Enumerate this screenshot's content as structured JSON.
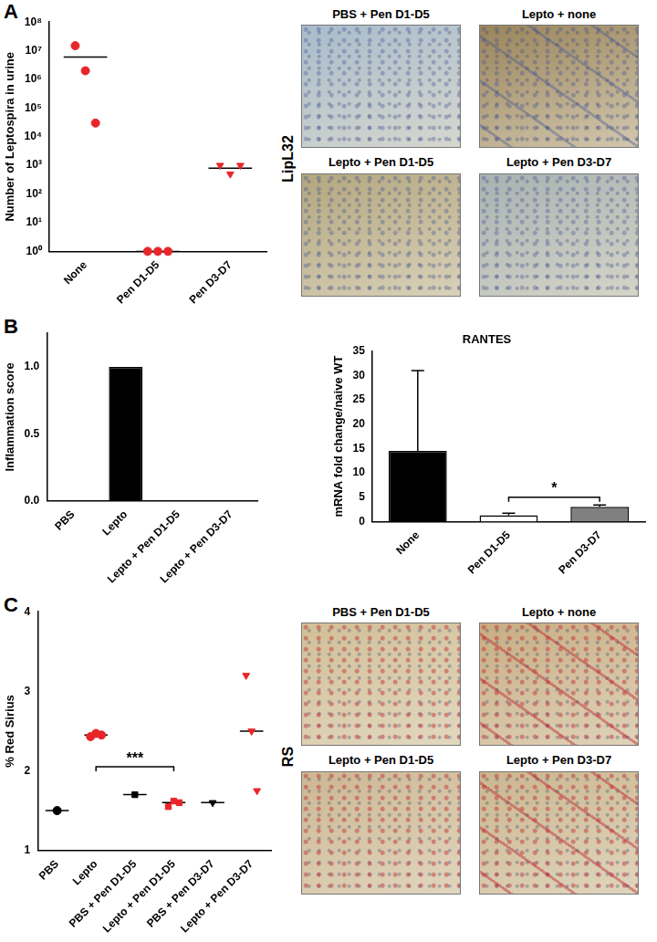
{
  "panel_labels": [
    "A",
    "B",
    "C"
  ],
  "chart_data": [
    {
      "type": "scatter",
      "ylabel": "Number of Leptospira in urine",
      "categories": [
        "None",
        "Pen D1-D5",
        "Pen D3-D7"
      ],
      "points": [
        [
          15000000,
          2000000,
          30000
        ],
        [
          1,
          1,
          1
        ],
        [
          1000,
          500,
          1000
        ]
      ],
      "center_values": [
        6000000,
        1,
        800
      ],
      "colors": [
        "#e8262a",
        "#e8262a",
        "#e8262a"
      ],
      "markers": [
        "circle",
        "circle",
        "triangle-down"
      ],
      "log": "y",
      "ylim": [
        1,
        100000000
      ],
      "yticks": [
        {
          "value": 1,
          "label": "10⁰"
        },
        {
          "value": 10,
          "label": "10¹"
        },
        {
          "value": 100,
          "label": "10²"
        },
        {
          "value": 1000,
          "label": "10³"
        },
        {
          "value": 10000,
          "label": "10⁴"
        },
        {
          "value": 100000,
          "label": "10⁵"
        },
        {
          "value": 1000000,
          "label": "10⁶"
        },
        {
          "value": 10000000,
          "label": "10⁷"
        },
        {
          "value": 100000000,
          "label": "10⁸"
        }
      ]
    },
    {
      "type": "bar",
      "ylabel": "Inflammation score",
      "categories": [
        "PBS",
        "Lepto",
        "Lepto + Pen D1-D5",
        "Lepto + Pen D3-D7"
      ],
      "values": [
        0,
        1,
        0,
        0
      ],
      "color": "#000000",
      "ylim": [
        0,
        1.25
      ],
      "yticks": [
        {
          "value": 0,
          "label": "0.0"
        },
        {
          "value": 0.5,
          "label": "0.5"
        },
        {
          "value": 1,
          "label": "1.0"
        }
      ]
    },
    {
      "type": "bar",
      "title": "RANTES",
      "ylabel": "mRNA fold change/naive WT",
      "categories": [
        "None",
        "Pen D1-D5",
        "Pen D3-D7"
      ],
      "values": [
        14.5,
        1.3,
        3.0
      ],
      "errors": [
        16.5,
        0.4,
        0.4
      ],
      "colors": [
        "#000000",
        "#ffffff",
        "#808080"
      ],
      "ylim": [
        0,
        35
      ],
      "yticks": [
        0,
        5,
        10,
        15,
        20,
        25,
        30,
        35
      ],
      "annotations": [
        {
          "text": "*",
          "from": "Pen D1-D5",
          "to": "Pen D3-D7",
          "y": 5
        }
      ]
    },
    {
      "type": "scatter",
      "ylabel": "% Red Sirius",
      "categories": [
        "PBS",
        "Lepto",
        "PBS + Pen D1-D5",
        "Lepto + Pen D1-D5",
        "PBS + Pen D3-D7",
        "Lepto + Pen D3-D7"
      ],
      "points": [
        [
          1.5
        ],
        [
          2.43,
          2.47,
          2.45
        ],
        [
          1.7
        ],
        [
          1.55,
          1.62,
          1.6
        ],
        [
          1.6
        ],
        [
          3.2,
          2.5,
          1.75
        ]
      ],
      "center_values": [
        1.5,
        2.45,
        1.7,
        1.6,
        1.6,
        2.5
      ],
      "colors": [
        "#000000",
        "#e8262a",
        "#000000",
        "#e8262a",
        "#000000",
        "#e8262a"
      ],
      "markers": [
        "circle",
        "circle",
        "square",
        "square",
        "triangle-down",
        "triangle-down"
      ],
      "ylim": [
        1,
        4
      ],
      "yticks": [
        1,
        2,
        3,
        4
      ],
      "annotations": [
        {
          "text": "***",
          "from": "Lepto",
          "to": "Lepto + Pen D1-D5",
          "y": 2.05
        }
      ]
    }
  ],
  "image_grids": [
    {
      "side_label": "LipL32",
      "images": [
        "PBS + Pen D1-D5",
        "Lepto + none",
        "Lepto + Pen D1-D5",
        "Lepto + Pen D3-D7"
      ]
    },
    {
      "side_label": "RS",
      "images": [
        "PBS + Pen D1-D5",
        "Lepto + none",
        "Lepto + Pen D1-D5",
        "Lepto + Pen D3-D7"
      ]
    }
  ]
}
